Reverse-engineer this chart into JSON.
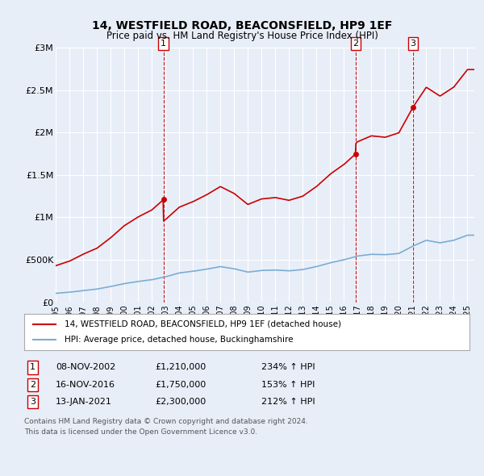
{
  "title": "14, WESTFIELD ROAD, BEACONSFIELD, HP9 1EF",
  "subtitle": "Price paid vs. HM Land Registry's House Price Index (HPI)",
  "background_color": "#e8eef8",
  "plot_bg_color": "#e8eef8",
  "legend_label_red": "14, WESTFIELD ROAD, BEACONSFIELD, HP9 1EF (detached house)",
  "legend_label_blue": "HPI: Average price, detached house, Buckinghamshire",
  "footer1": "Contains HM Land Registry data © Crown copyright and database right 2024.",
  "footer2": "This data is licensed under the Open Government Licence v3.0.",
  "sales": [
    {
      "num": 1,
      "date_label": "08-NOV-2002",
      "x": 2002.86,
      "price": 1210000,
      "pct": "234% ↑ HPI"
    },
    {
      "num": 2,
      "date_label": "16-NOV-2016",
      "x": 2016.87,
      "price": 1750000,
      "pct": "153% ↑ HPI"
    },
    {
      "num": 3,
      "date_label": "13-JAN-2021",
      "x": 2021.04,
      "price": 2300000,
      "pct": "212% ↑ HPI"
    }
  ],
  "ylim": [
    0,
    3000000
  ],
  "xlim_left": 1995.0,
  "xlim_right": 2025.5,
  "yticks": [
    0,
    500000,
    1000000,
    1500000,
    2000000,
    2500000,
    3000000
  ],
  "ytick_labels": [
    "£0",
    "£500K",
    "£1M",
    "£1.5M",
    "£2M",
    "£2.5M",
    "£3M"
  ],
  "xticks": [
    1995,
    1996,
    1997,
    1998,
    1999,
    2000,
    2001,
    2002,
    2003,
    2004,
    2005,
    2006,
    2007,
    2008,
    2009,
    2010,
    2011,
    2012,
    2013,
    2014,
    2015,
    2016,
    2017,
    2018,
    2019,
    2020,
    2021,
    2022,
    2023,
    2024,
    2025
  ],
  "hpi_color": "#7aadd4",
  "sale_color": "#cc0000",
  "vline_color": "#cc0000",
  "marker_color": "#cc0000",
  "hpi_years": [
    1995,
    1996,
    1997,
    1998,
    1999,
    2000,
    2001,
    2002,
    2003,
    2004,
    2005,
    2006,
    2007,
    2008,
    2009,
    2010,
    2011,
    2012,
    2013,
    2014,
    2015,
    2016,
    2017,
    2018,
    2019,
    2020,
    2021,
    2022,
    2023,
    2024,
    2025
  ],
  "hpi_prices": [
    105000,
    118000,
    138000,
    155000,
    185000,
    220000,
    245000,
    265000,
    300000,
    345000,
    365000,
    390000,
    420000,
    395000,
    355000,
    375000,
    380000,
    370000,
    385000,
    420000,
    465000,
    500000,
    545000,
    565000,
    560000,
    575000,
    660000,
    730000,
    700000,
    730000,
    790000
  ]
}
